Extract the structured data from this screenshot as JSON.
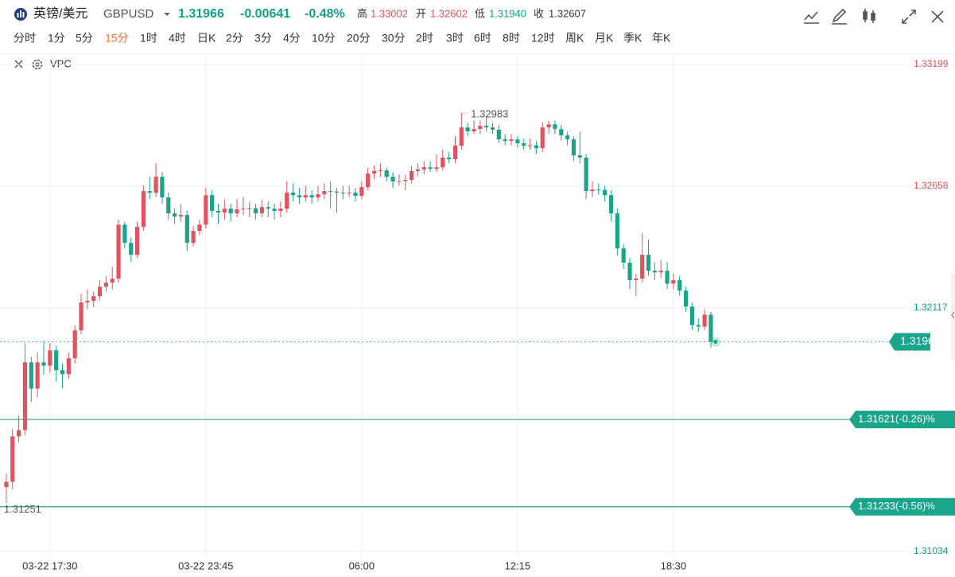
{
  "header": {
    "symbol_name": "英镑/美元",
    "symbol_code": "GBPUSD",
    "price": "1.31966",
    "change": "-0.00641",
    "change_pct": "-0.48%",
    "stats": [
      {
        "label": "高",
        "value": "1.33002"
      },
      {
        "label": "开",
        "value": "1.32602"
      },
      {
        "label": "低",
        "value": "1.31940"
      },
      {
        "label": "收",
        "value": "1.32607"
      }
    ]
  },
  "periods": [
    "分时",
    "1分",
    "5分",
    "15分",
    "1时",
    "4时",
    "日K",
    "2分",
    "3分",
    "4分",
    "10分",
    "20分",
    "30分",
    "2时",
    "3时",
    "6时",
    "8时",
    "12时",
    "周K",
    "月K",
    "季K",
    "年K"
  ],
  "active_period_index": 3,
  "indicator": "VPC",
  "chart_data": {
    "type": "candlestick",
    "up_color": "#e0535f",
    "down_color": "#1aa58a",
    "grid": true,
    "xlim": [
      -0.5,
      141.5
    ],
    "xticks": [
      {
        "value": 7,
        "label": "03-22 17:30"
      },
      {
        "value": 32,
        "label": "03-22 23:45"
      },
      {
        "value": 57,
        "label": "06:00"
      },
      {
        "value": 82,
        "label": "12:15"
      },
      {
        "value": 107,
        "label": "18:30"
      }
    ],
    "ylim": [
      1.31034,
      1.33199
    ],
    "yticks": [
      1.33199,
      1.32658,
      1.32117,
      1.31034
    ],
    "last_price": 1.31966,
    "annotations": [
      {
        "value": 1.32983,
        "x": 73
      },
      {
        "value": 1.31251,
        "x": 0
      }
    ],
    "price_lines": [
      {
        "value": 1.31621,
        "label": "1.31621(-0.26)%"
      },
      {
        "value": 1.31233,
        "label": "1.31233(-0.56)%"
      }
    ],
    "ohlc": [
      [
        1.3132,
        1.3138,
        1.31251,
        1.31344
      ],
      [
        1.31344,
        1.3158,
        1.3131,
        1.31546
      ],
      [
        1.31546,
        1.3164,
        1.3152,
        1.31574
      ],
      [
        1.31574,
        1.3196,
        1.3155,
        1.31875
      ],
      [
        1.31875,
        1.319,
        1.317,
        1.31758
      ],
      [
        1.31758,
        1.3192,
        1.3172,
        1.31875
      ],
      [
        1.31875,
        1.3197,
        1.3182,
        1.3186
      ],
      [
        1.3186,
        1.3196,
        1.3183,
        1.31928
      ],
      [
        1.31928,
        1.3195,
        1.3179,
        1.3184
      ],
      [
        1.3184,
        1.3187,
        1.3176,
        1.31822
      ],
      [
        1.31822,
        1.3192,
        1.318,
        1.31893
      ],
      [
        1.31893,
        1.3204,
        1.3187,
        1.32017
      ],
      [
        1.32017,
        1.3218,
        1.32,
        1.32141
      ],
      [
        1.32141,
        1.322,
        1.3211,
        1.32148
      ],
      [
        1.32148,
        1.3219,
        1.3212,
        1.32169
      ],
      [
        1.32169,
        1.3224,
        1.3215,
        1.32211
      ],
      [
        1.32211,
        1.3226,
        1.3219,
        1.32229
      ],
      [
        1.32229,
        1.323,
        1.322,
        1.32247
      ],
      [
        1.32247,
        1.3251,
        1.3223,
        1.32487
      ],
      [
        1.32487,
        1.325,
        1.3238,
        1.32406
      ],
      [
        1.32406,
        1.3243,
        1.3232,
        1.32353
      ],
      [
        1.32353,
        1.325,
        1.3234,
        1.32477
      ],
      [
        1.32477,
        1.3266,
        1.3246,
        1.32636
      ],
      [
        1.32636,
        1.327,
        1.326,
        1.32629
      ],
      [
        1.32629,
        1.3276,
        1.3261,
        1.327
      ],
      [
        1.327,
        1.3272,
        1.3258,
        1.32608
      ],
      [
        1.32608,
        1.3263,
        1.3251,
        1.32537
      ],
      [
        1.32537,
        1.3256,
        1.3249,
        1.32523
      ],
      [
        1.32523,
        1.3258,
        1.325,
        1.3253
      ],
      [
        1.3253,
        1.3255,
        1.3237,
        1.32406
      ],
      [
        1.32406,
        1.3248,
        1.3239,
        1.32459
      ],
      [
        1.32459,
        1.3251,
        1.3244,
        1.32487
      ],
      [
        1.32487,
        1.3265,
        1.3247,
        1.32618
      ],
      [
        1.32618,
        1.3264,
        1.3252,
        1.32548
      ],
      [
        1.32548,
        1.3258,
        1.3249,
        1.32541
      ],
      [
        1.32541,
        1.326,
        1.3251,
        1.32558
      ],
      [
        1.32558,
        1.3258,
        1.325,
        1.32537
      ],
      [
        1.32537,
        1.326,
        1.3252,
        1.32555
      ],
      [
        1.32555,
        1.3261,
        1.3253,
        1.32558
      ],
      [
        1.32558,
        1.3259,
        1.3252,
        1.3256
      ],
      [
        1.3256,
        1.3258,
        1.3251,
        1.32537
      ],
      [
        1.32537,
        1.326,
        1.3252,
        1.32565
      ],
      [
        1.32565,
        1.3259,
        1.3252,
        1.32558
      ],
      [
        1.32558,
        1.3258,
        1.3251,
        1.32548
      ],
      [
        1.32548,
        1.3259,
        1.3252,
        1.32558
      ],
      [
        1.32558,
        1.3268,
        1.3254,
        1.32629
      ],
      [
        1.32629,
        1.3267,
        1.3259,
        1.32618
      ],
      [
        1.32618,
        1.3265,
        1.3258,
        1.32608
      ],
      [
        1.32608,
        1.3266,
        1.3259,
        1.32618
      ],
      [
        1.32618,
        1.3264,
        1.3258,
        1.32608
      ],
      [
        1.32608,
        1.3266,
        1.3259,
        1.32622
      ],
      [
        1.32622,
        1.3267,
        1.326,
        1.32636
      ],
      [
        1.32636,
        1.3268,
        1.3256,
        1.32634
      ],
      [
        1.32634,
        1.3265,
        1.3254,
        1.32629
      ],
      [
        1.32629,
        1.3266,
        1.326,
        1.32626
      ],
      [
        1.32626,
        1.3266,
        1.3261,
        1.32629
      ],
      [
        1.32629,
        1.3265,
        1.3259,
        1.32615
      ],
      [
        1.32615,
        1.3268,
        1.326,
        1.32654
      ],
      [
        1.32654,
        1.3274,
        1.3264,
        1.32714
      ],
      [
        1.32714,
        1.3275,
        1.3269,
        1.32725
      ],
      [
        1.32725,
        1.3276,
        1.327,
        1.32728
      ],
      [
        1.32728,
        1.3274,
        1.3268,
        1.327
      ],
      [
        1.327,
        1.3272,
        1.3265,
        1.32679
      ],
      [
        1.32679,
        1.3271,
        1.3266,
        1.32681
      ],
      [
        1.32681,
        1.3271,
        1.3264,
        1.32686
      ],
      [
        1.32686,
        1.3275,
        1.3267,
        1.32725
      ],
      [
        1.32725,
        1.3276,
        1.327,
        1.32732
      ],
      [
        1.32732,
        1.3277,
        1.3271,
        1.32742
      ],
      [
        1.32742,
        1.3277,
        1.3272,
        1.32735
      ],
      [
        1.32735,
        1.328,
        1.3272,
        1.32742
      ],
      [
        1.32742,
        1.3282,
        1.3273,
        1.32785
      ],
      [
        1.32785,
        1.3281,
        1.3276,
        1.32778
      ],
      [
        1.32778,
        1.3288,
        1.3276,
        1.32838
      ],
      [
        1.32838,
        1.32983,
        1.3282,
        1.32919
      ],
      [
        1.32919,
        1.3294,
        1.3288,
        1.32902
      ],
      [
        1.32902,
        1.3295,
        1.3289,
        1.32912
      ],
      [
        1.32912,
        1.3295,
        1.3289,
        1.32926
      ],
      [
        1.32926,
        1.3297,
        1.329,
        1.32919
      ],
      [
        1.32919,
        1.3294,
        1.3289,
        1.32909
      ],
      [
        1.32909,
        1.3293,
        1.3285,
        1.32866
      ],
      [
        1.32866,
        1.3289,
        1.3284,
        1.32859
      ],
      [
        1.32859,
        1.3289,
        1.3284,
        1.32866
      ],
      [
        1.32866,
        1.3288,
        1.3283,
        1.32849
      ],
      [
        1.32849,
        1.3287,
        1.3282,
        1.32838
      ],
      [
        1.32838,
        1.3287,
        1.3282,
        1.3284
      ],
      [
        1.3284,
        1.3286,
        1.328,
        1.32827
      ],
      [
        1.32827,
        1.3294,
        1.3281,
        1.32919
      ],
      [
        1.32919,
        1.3295,
        1.3289,
        1.32933
      ],
      [
        1.32933,
        1.3295,
        1.3289,
        1.32912
      ],
      [
        1.32912,
        1.3293,
        1.3286,
        1.32884
      ],
      [
        1.32884,
        1.329,
        1.3284,
        1.32866
      ],
      [
        1.32866,
        1.3288,
        1.3277,
        1.32795
      ],
      [
        1.32795,
        1.329,
        1.3276,
        1.32785
      ],
      [
        1.32785,
        1.328,
        1.326,
        1.32636
      ],
      [
        1.32636,
        1.3268,
        1.3261,
        1.32643
      ],
      [
        1.32643,
        1.3267,
        1.3262,
        1.32641
      ],
      [
        1.32641,
        1.3266,
        1.3259,
        1.32618
      ],
      [
        1.32618,
        1.3264,
        1.325,
        1.32537
      ],
      [
        1.32537,
        1.3256,
        1.3235,
        1.32381
      ],
      [
        1.32381,
        1.324,
        1.3229,
        1.32318
      ],
      [
        1.32318,
        1.3234,
        1.322,
        1.3224
      ],
      [
        1.3224,
        1.3227,
        1.3217,
        1.32247
      ],
      [
        1.32247,
        1.3245,
        1.3223,
        1.32353
      ],
      [
        1.32353,
        1.3242,
        1.3226,
        1.32282
      ],
      [
        1.32282,
        1.3232,
        1.3224,
        1.32275
      ],
      [
        1.32275,
        1.3233,
        1.3225,
        1.32282
      ],
      [
        1.32282,
        1.3232,
        1.322,
        1.32225
      ],
      [
        1.32225,
        1.3227,
        1.322,
        1.3224
      ],
      [
        1.3224,
        1.3226,
        1.3217,
        1.32194
      ],
      [
        1.32194,
        1.3221,
        1.321,
        1.32123
      ],
      [
        1.32123,
        1.3214,
        1.3202,
        1.32041
      ],
      [
        1.32041,
        1.3207,
        1.3201,
        1.32034
      ],
      [
        1.32034,
        1.3211,
        1.3202,
        1.32087
      ],
      [
        1.32087,
        1.321,
        1.3194,
        1.31966
      ]
    ]
  }
}
